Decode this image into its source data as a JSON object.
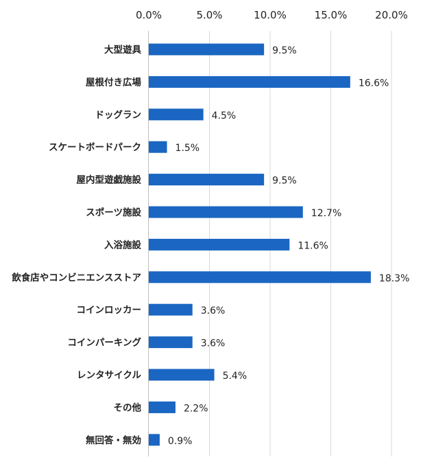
{
  "chart_data": {
    "type": "bar",
    "orientation": "horizontal",
    "categories": [
      "大型遊具",
      "屋根付き広場",
      "ドッグラン",
      "スケートボードパーク",
      "屋内型遊戯施設",
      "スポーツ施設",
      "入浴施設",
      "飲食店やコンビニエンスストア",
      "コインロッカー",
      "コインパーキング",
      "レンタサイクル",
      "その他",
      "無回答・無効"
    ],
    "values": [
      9.5,
      16.6,
      4.5,
      1.5,
      9.5,
      12.7,
      11.6,
      18.3,
      3.6,
      3.6,
      5.4,
      2.2,
      0.9
    ],
    "value_labels": [
      "9.5%",
      "16.6%",
      "4.5%",
      "1.5%",
      "9.5%",
      "12.7%",
      "11.6%",
      "18.3%",
      "3.6%",
      "3.6%",
      "5.4%",
      "2.2%",
      "0.9%"
    ],
    "xlim": [
      0,
      20
    ],
    "xticks": [
      0,
      5,
      10,
      15,
      20
    ],
    "xtick_labels": [
      "0.0%",
      "5.0%",
      "10.0%",
      "15.0%",
      "20.0%"
    ],
    "x_axis_position": "top",
    "grid": true,
    "legend": "none",
    "bar_color": "#1a66c2",
    "grid_color": "#d9d9d9"
  }
}
